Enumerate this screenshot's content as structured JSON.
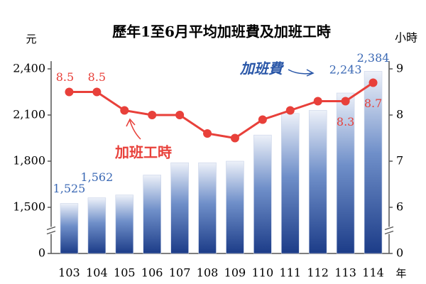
{
  "chart_data": {
    "type": "bar_line",
    "title": "歷年1至6月平均加班費及加班工時",
    "y_unit": "元",
    "y2_unit": "小時",
    "x_unit": "年",
    "categories": [
      "103",
      "104",
      "105",
      "106",
      "107",
      "108",
      "109",
      "110",
      "111",
      "112",
      "113",
      "114"
    ],
    "series": [
      {
        "name": "加班費",
        "type": "bar",
        "color": "#1f4e99",
        "values": [
          1525,
          1562,
          1580,
          1710,
          1790,
          1790,
          1800,
          1970,
          2110,
          2130,
          2243,
          2384
        ],
        "value_labels": [
          "1,525",
          "1,562",
          null,
          null,
          null,
          null,
          null,
          null,
          null,
          null,
          "2,243",
          "2,384"
        ]
      },
      {
        "name": "加班工時",
        "type": "line",
        "axis": "y2",
        "color": "#e8403a",
        "values": [
          8.5,
          8.5,
          8.1,
          8.0,
          8.0,
          7.6,
          7.5,
          7.9,
          8.1,
          8.3,
          8.3,
          8.7
        ],
        "value_labels": [
          "8.5",
          "8.5",
          null,
          null,
          null,
          null,
          null,
          null,
          null,
          null,
          "8.3",
          "8.7"
        ]
      }
    ],
    "ylim": [
      0,
      2450
    ],
    "yticks": [
      0,
      {
        "value": 1500,
        "label": "1,500"
      },
      {
        "value": 1800,
        "label": "1,800"
      },
      {
        "value": 2100,
        "label": "2,100"
      },
      {
        "value": 2400,
        "label": "2,400"
      }
    ],
    "y2lim": [
      0,
      9.15
    ],
    "y2ticks": [
      0,
      6,
      7,
      8,
      9
    ],
    "axis_break": true
  }
}
